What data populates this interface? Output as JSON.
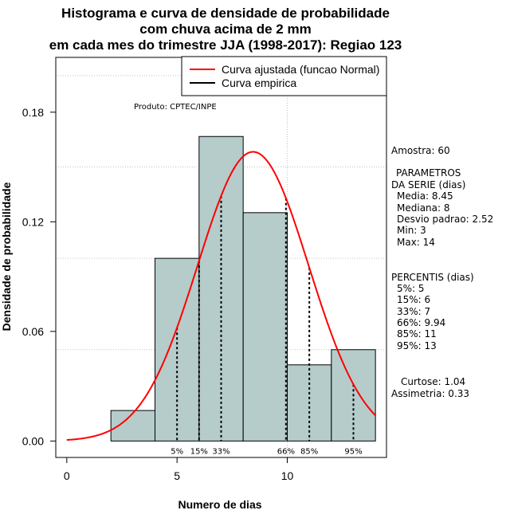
{
  "chart_data": {
    "type": "bar",
    "title_lines": [
      "Histograma e curva de densidade de probabilidade",
      "com chuva acima de 2 mm",
      "em cada mes do trimestre JJA (1998-2017): Regiao 123"
    ],
    "xlabel": "Numero de dias",
    "ylabel": "Densidade de probabilidade",
    "xlim": [
      -0.5,
      14.5
    ],
    "ylim": [
      -0.009,
      0.21
    ],
    "xticks": [
      0,
      5,
      10
    ],
    "yticks": [
      0.0,
      0.06,
      0.12,
      0.18
    ],
    "ytick_labels": [
      "0.00",
      "0.06",
      "0.12",
      "0.18"
    ],
    "grid_y": [
      0.05,
      0.1,
      0.15,
      0.2
    ],
    "grid_x": [
      10
    ],
    "bins": [
      {
        "x0": 2,
        "x1": 4,
        "density": 0.0167
      },
      {
        "x0": 4,
        "x1": 6,
        "density": 0.1
      },
      {
        "x0": 6,
        "x1": 8,
        "density": 0.1667
      },
      {
        "x0": 8,
        "x1": 10,
        "density": 0.125
      },
      {
        "x0": 10,
        "x1": 12,
        "density": 0.0417
      },
      {
        "x0": 12,
        "x1": 14,
        "density": 0.05
      }
    ],
    "bar_color": "#b5cccb",
    "normal_curve": {
      "name": "Curva ajustada (funcao Normal)",
      "mean": 8.45,
      "sd": 2.52,
      "x_range": [
        0,
        14
      ],
      "color": "#ff0000"
    },
    "empirical_curve": {
      "name": "Curva empirica",
      "color": "#000000"
    },
    "percentiles": [
      {
        "label": "5%",
        "x": 5
      },
      {
        "label": "15%",
        "x": 6
      },
      {
        "label": "33%",
        "x": 7
      },
      {
        "label": "66%",
        "x": 9.94
      },
      {
        "label": "85%",
        "x": 11
      },
      {
        "label": "95%",
        "x": 13
      }
    ],
    "annotation": "Produto: CPTEC/INPE",
    "legend_position": "top-right",
    "side_panel": {
      "amostra": "Amostra: 60",
      "parametros_title": "PARAMETROS",
      "parametros_subtitle": "DA SERIE (dias)",
      "parametros": [
        "Media: 8.45",
        "Mediana: 8",
        "Desvio padrao: 2.52",
        "Min: 3",
        "Max: 14"
      ],
      "percentis_title": "PERCENTIS (dias)",
      "percentis": [
        "5%: 5",
        "15%: 6",
        "33%: 7",
        "66%: 9.94",
        "85%: 11",
        "95%: 13"
      ],
      "curtose": "Curtose: 1.04",
      "assimetria": "Assimetria: 0.33"
    }
  }
}
